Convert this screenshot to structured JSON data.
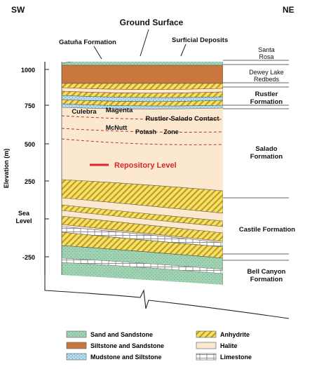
{
  "compass": {
    "left": "SW",
    "right": "NE"
  },
  "top_labels": {
    "ground_surface": "Ground Surface",
    "gatuna": "Gatuña Formation",
    "surficial": "Surficial Deposits"
  },
  "y_axis": {
    "label": "Elevation (m)",
    "ticks": [
      "1000",
      "750",
      "500",
      "250",
      "-250"
    ],
    "sea_level": [
      "Sea",
      "Level"
    ]
  },
  "formations_right": {
    "santa_rosa": [
      "Santa",
      "Rosa"
    ],
    "dewey_lake": [
      "Dewey Lake",
      "Redbeds"
    ],
    "rustler": [
      "Rustler",
      "Formation"
    ],
    "salado": [
      "Salado",
      "Formation"
    ],
    "castile": "Castile Formation",
    "bell_canyon": [
      "Bell Canyon",
      "Formation"
    ]
  },
  "inner_labels": {
    "culebra": "Culebra",
    "magenta": "Magenta",
    "rustler_salado_contact": "Rustler-Salado Contact",
    "mcnutt": "McNutt",
    "potash": "Potash",
    "zone": "Zone",
    "repository_level": "Repository Level"
  },
  "legend": [
    {
      "label": "Sand and Sandstone",
      "fill": "sand"
    },
    {
      "label": "Anhydrite",
      "fill": "anhydrite"
    },
    {
      "label": "Siltstone and Sandstone",
      "fill": "silt"
    },
    {
      "label": "Halite",
      "fill": "halite"
    },
    {
      "label": "Mudstone and Siltstone",
      "fill": "mud"
    },
    {
      "label": "Limestone",
      "fill": "lime"
    }
  ],
  "colors": {
    "sand": "#9fd3b4",
    "siltstone": "#c9773f",
    "mudstone": "#b7dff0",
    "anhydrite_bg": "#f4e36a",
    "anhydrite_stripe": "#c49a22",
    "halite": "#fbe8cf",
    "repository": "#d9262a",
    "dashed": "#b13a2a"
  }
}
